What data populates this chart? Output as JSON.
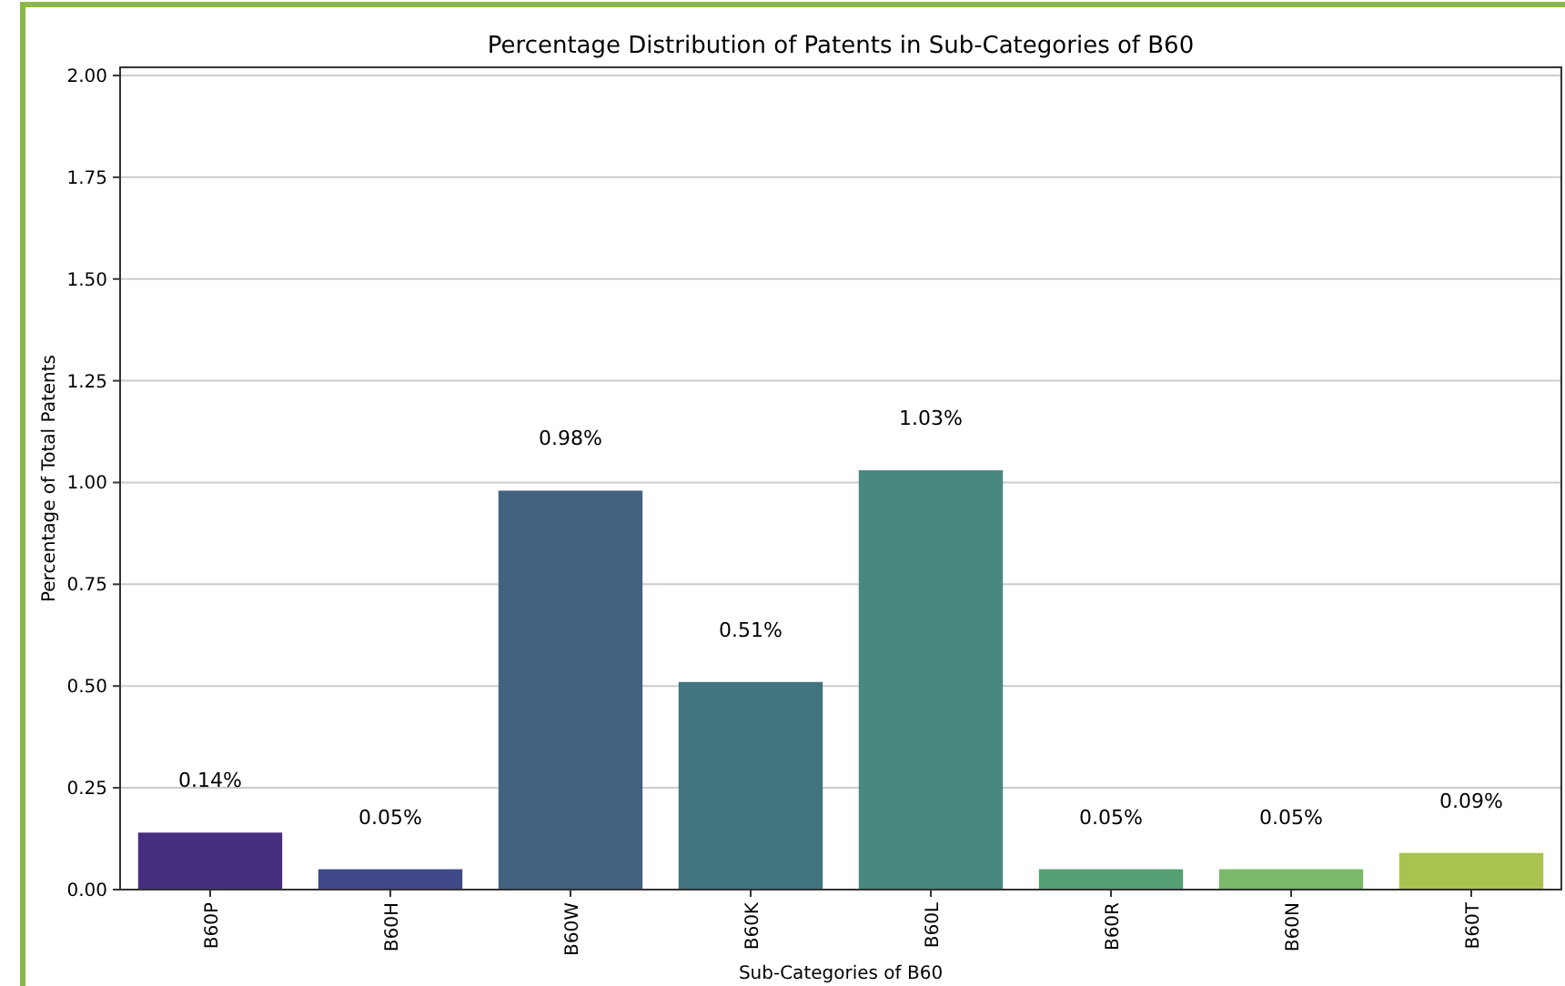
{
  "chart_data": {
    "type": "bar",
    "title": "Percentage Distribution of Patents in Sub-Categories of B60",
    "xlabel": "Sub-Categories of B60",
    "ylabel": "Percentage of Total Patents",
    "categories": [
      "B60P",
      "B60H",
      "B60W",
      "B60K",
      "B60L",
      "B60R",
      "B60N",
      "B60T"
    ],
    "values": [
      0.14,
      0.05,
      0.98,
      0.51,
      1.03,
      0.05,
      0.05,
      0.09
    ],
    "value_labels": [
      "0.14%",
      "0.05%",
      "0.98%",
      "0.51%",
      "1.03%",
      "0.05%",
      "0.05%",
      "0.09%"
    ],
    "colors": [
      "#46307d",
      "#404a88",
      "#43627f",
      "#41747f",
      "#48887e",
      "#55a073",
      "#7aba68",
      "#a8c34f"
    ],
    "ylim": [
      0,
      2.02
    ],
    "yticks": [
      {
        "value": 0,
        "label": "0.00"
      },
      {
        "value": 0.25,
        "label": "0.25"
      },
      {
        "value": 0.5,
        "label": "0.50"
      },
      {
        "value": 0.75,
        "label": "0.75"
      },
      {
        "value": 1,
        "label": "1.00"
      },
      {
        "value": 1.25,
        "label": "1.25"
      },
      {
        "value": 1.5,
        "label": "1.50"
      },
      {
        "value": 1.75,
        "label": "1.75"
      },
      {
        "value": 2,
        "label": "2.00"
      }
    ],
    "grid": "y"
  }
}
